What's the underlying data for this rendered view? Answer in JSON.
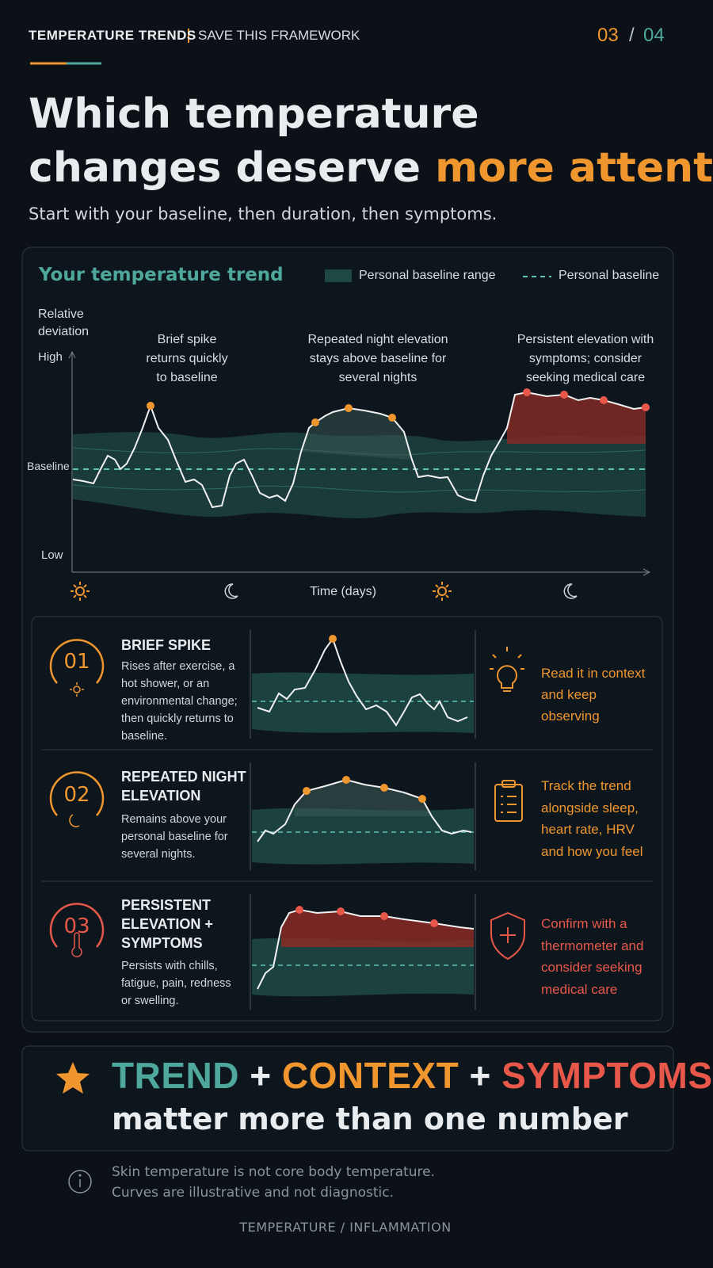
{
  "header": {
    "section": "TEMPERATURE TRENDS",
    "tag": "SAVE THIS FRAMEWORK",
    "page_current": "03",
    "page_separator": "/",
    "page_total": "04"
  },
  "title": {
    "line1": "Which temperature",
    "line2": "changes deserve",
    "highlight": "more attention?"
  },
  "subtitle": "Start with your baseline, then duration, then symptoms.",
  "trend": {
    "title": "Your temperature trend",
    "legend_range": "Personal baseline range",
    "legend_baseline": "Personal baseline",
    "y_label": "Relative deviation",
    "y_high": "High",
    "y_baseline": "Baseline",
    "y_low": "Low",
    "x_label": "Time (days)",
    "annotations": [
      "Brief spike returns quickly to baseline",
      "Repeated night elevation stays above baseline for several nights",
      "Persistent elevation with symptoms; consider seeking medical care"
    ]
  },
  "cards": [
    {
      "number": "01",
      "title": "BRIEF SPIKE",
      "description": "Rises after exercise, a hot shower, or an environmental change; then quickly returns to baseline.",
      "action": "Read it in context and keep observing"
    },
    {
      "number": "02",
      "title": "REPEATED NIGHT ELEVATION",
      "description": "Remains above your personal baseline for several nights.",
      "action": "Track the trend alongside sleep, heart rate, HRV and how you feel"
    },
    {
      "number": "03",
      "title": "PERSISTENT ELEVATION + SYMPTOMS",
      "description": "Persists with chills, fatigue, pain, redness or swelling.",
      "action": "Confirm with a thermometer and consider seeking medical care"
    }
  ],
  "banner": {
    "trend": "TREND",
    "plus1": "+",
    "context": "CONTEXT",
    "plus2": "+",
    "symptoms": "SYMPTOMS",
    "line2": "matter more than one number"
  },
  "note": {
    "line1": "Skin temperature is not core body temperature.",
    "line2": "Curves are illustrative and not diagnostic."
  },
  "footer": "TEMPERATURE / INFLAMMATION"
}
